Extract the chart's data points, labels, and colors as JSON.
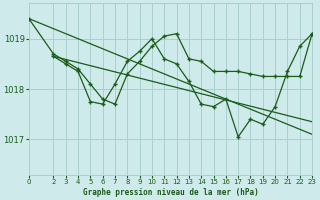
{
  "title": "Graphe pression niveau de la mer (hPa)",
  "bg_color": "#ceeaea",
  "grid_color": "#aacfcf",
  "line_color": "#1a5c1a",
  "xlim": [
    0,
    23
  ],
  "ylim": [
    1016.3,
    1019.7
  ],
  "yticks": [
    1017,
    1018,
    1019
  ],
  "xticks": [
    0,
    2,
    3,
    4,
    5,
    6,
    7,
    8,
    9,
    10,
    11,
    12,
    13,
    14,
    15,
    16,
    17,
    18,
    19,
    20,
    21,
    22,
    23
  ],
  "series1_x": [
    0,
    2,
    3,
    4,
    5,
    6,
    7,
    8,
    9,
    10,
    11,
    12,
    13,
    14,
    15,
    16,
    17,
    18,
    19,
    20,
    21,
    22,
    23
  ],
  "series1_y": [
    1019.4,
    1018.7,
    1018.55,
    1018.4,
    1018.1,
    1017.8,
    1017.7,
    1018.3,
    1018.55,
    1018.85,
    1019.05,
    1019.1,
    1018.6,
    1018.55,
    1018.35,
    1018.35,
    1018.35,
    1018.3,
    1018.25,
    1018.25,
    1018.25,
    1018.25,
    1019.1
  ],
  "series2_x": [
    2,
    3,
    4,
    5,
    6,
    7,
    8,
    9,
    10,
    11,
    12,
    13,
    14,
    15,
    16,
    17,
    18,
    19,
    20,
    21,
    22,
    23
  ],
  "series2_y": [
    1018.65,
    1018.5,
    1018.35,
    1017.75,
    1017.7,
    1018.1,
    1018.55,
    1018.75,
    1019.0,
    1018.6,
    1018.5,
    1018.15,
    1017.7,
    1017.65,
    1017.8,
    1017.05,
    1017.4,
    1017.3,
    1017.65,
    1018.35,
    1018.85,
    1019.1
  ],
  "trend1_x": [
    0,
    23
  ],
  "trend1_y": [
    1019.4,
    1017.1
  ],
  "trend2_x": [
    2,
    23
  ],
  "trend2_y": [
    1018.65,
    1017.35
  ]
}
